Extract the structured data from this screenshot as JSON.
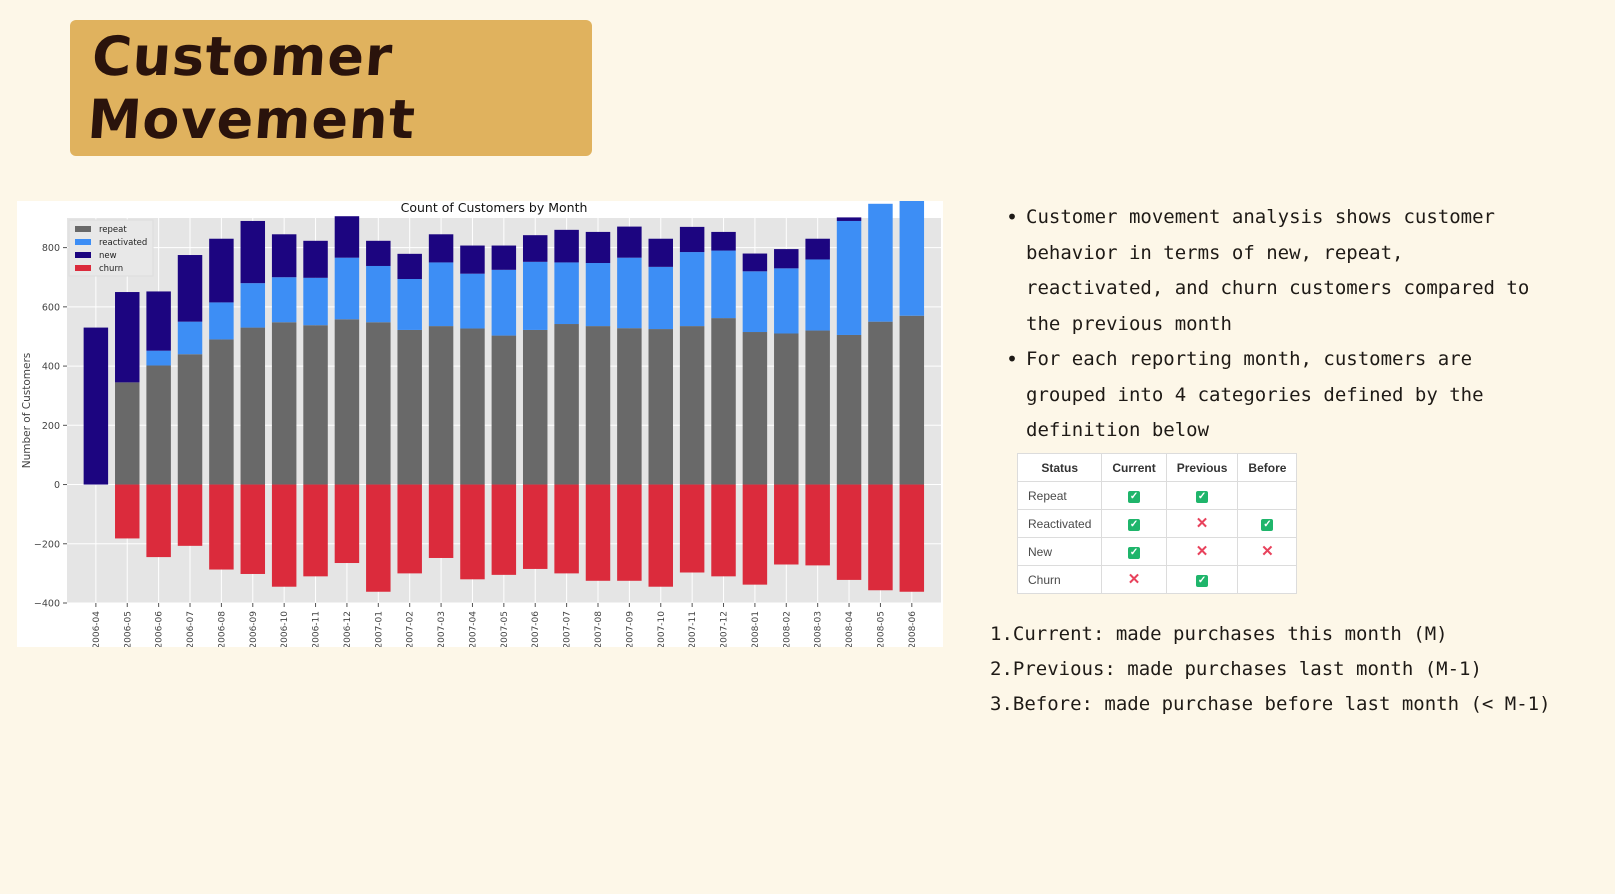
{
  "title": "Customer Movement",
  "bullets": [
    "Customer movement analysis shows customer behavior in terms of new, repeat, reactivated, and churn customers compared to the previous month",
    "For each reporting month, customers are grouped into 4 categories defined by the definition below"
  ],
  "definition_table": {
    "headers": [
      "Status",
      "Current",
      "Previous",
      "Before"
    ],
    "rows": [
      {
        "status": "Repeat",
        "current": "check",
        "previous": "check",
        "before": ""
      },
      {
        "status": "Reactivated",
        "current": "check",
        "previous": "cross",
        "before": "check"
      },
      {
        "status": "New",
        "current": "check",
        "previous": "cross",
        "before": "cross"
      },
      {
        "status": "Churn",
        "current": "cross",
        "previous": "check",
        "before": ""
      }
    ]
  },
  "definitions": [
    {
      "num": "1.",
      "text": "Current: made purchases this month (M)"
    },
    {
      "num": "2.",
      "text": "Previous: made purchases last month (M-1)"
    },
    {
      "num": "3.",
      "text": "Before: made purchase before last month (< M-1)"
    }
  ],
  "chart_data": {
    "type": "bar",
    "stacked": true,
    "title": "Count of Customers by Month",
    "xlabel": "",
    "ylabel": "Number of Customers",
    "ylim": [
      -400,
      900
    ],
    "yticks": [
      -400,
      -200,
      0,
      200,
      400,
      600,
      800
    ],
    "grid": true,
    "legend_position": "top-left",
    "categories": [
      "2006-04",
      "2006-05",
      "2006-06",
      "2006-07",
      "2006-08",
      "2006-09",
      "2006-10",
      "2006-11",
      "2006-12",
      "2007-01",
      "2007-02",
      "2007-03",
      "2007-04",
      "2007-05",
      "2007-06",
      "2007-07",
      "2007-08",
      "2007-09",
      "2007-10",
      "2007-11",
      "2007-12",
      "2008-01",
      "2008-02",
      "2008-03",
      "2008-04",
      "2008-05",
      "2008-06"
    ],
    "series": [
      {
        "name": "repeat",
        "color": "#696969",
        "values": [
          0,
          345,
          402,
          440,
          490,
          530,
          548,
          538,
          558,
          548,
          522,
          535,
          527,
          503,
          522,
          542,
          535,
          528,
          525,
          535,
          562,
          515,
          510,
          520,
          505,
          550,
          570
        ]
      },
      {
        "name": "reactivated",
        "color": "#3d8ef5",
        "values": [
          0,
          0,
          50,
          110,
          125,
          150,
          152,
          160,
          208,
          190,
          172,
          215,
          185,
          222,
          230,
          208,
          213,
          238,
          210,
          250,
          228,
          205,
          220,
          240,
          385,
          398,
          395
        ]
      },
      {
        "name": "new",
        "color": "#1c0580",
        "values": [
          530,
          305,
          200,
          225,
          215,
          210,
          145,
          125,
          140,
          85,
          85,
          95,
          95,
          82,
          90,
          110,
          105,
          105,
          95,
          85,
          63,
          60,
          65,
          70,
          12,
          0,
          0
        ]
      },
      {
        "name": "churn",
        "color": "#db2b3c",
        "values": [
          0,
          -182,
          -245,
          -207,
          -287,
          -302,
          -345,
          -310,
          -265,
          -362,
          -300,
          -248,
          -320,
          -305,
          -285,
          -300,
          -325,
          -325,
          -345,
          -297,
          -310,
          -338,
          -270,
          -273,
          -322,
          -357,
          -362
        ]
      }
    ]
  }
}
